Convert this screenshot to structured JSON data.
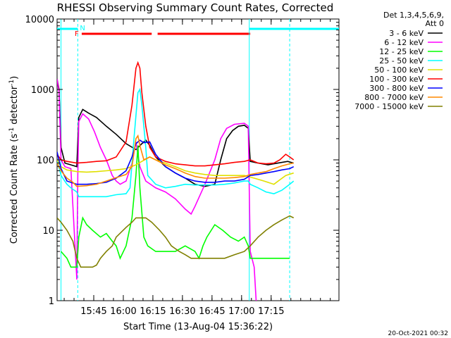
{
  "chart_data": {
    "type": "line",
    "title": "RHESSI Observing Summary Count Rates, Corrected",
    "xlabel": "Start Time (13-Aug-04 15:36:22)",
    "ylabel_main": "Corrected Count Rate (s",
    "ylabel_sup1": "-1",
    "ylabel_mid": " detector",
    "ylabel_sup2": "-1",
    "ylabel_end": ")",
    "y_log": true,
    "ylim": [
      1,
      10000
    ],
    "xlim_min": [
      -10,
      133
    ],
    "xtick_min": [
      8.6,
      23.6,
      38.6,
      53.6,
      68.6,
      83.6,
      98.6
    ],
    "xtick_labels": [
      "15:45",
      "16:00",
      "16:15",
      "16:30",
      "16:45",
      "17:00",
      "17:15"
    ],
    "ytick_values": [
      1,
      10,
      100,
      1000,
      10000
    ],
    "ytick_labels": [
      "1",
      "10",
      "100",
      "1000",
      "10000"
    ],
    "legend_header": [
      "Det 1,3,4,5,6,9,",
      "Att 0"
    ],
    "legend_position": "right",
    "footer_date": "20-Oct-2021 00:32",
    "flags": {
      "night_label": "N",
      "flare_label": "F",
      "night_color": "#00ffff",
      "flare_color": "#ff0000",
      "night_intervals_min": [
        [
          -10,
          0.5
        ],
        [
          87.5,
          133
        ]
      ],
      "flare_intervals_min": [
        [
          2.5,
          38
        ],
        [
          41,
          88
        ]
      ],
      "day_boundaries_min": [
        -8,
        0.5,
        87.5,
        108
      ]
    },
    "series": [
      {
        "name": "3 - 6 keV",
        "color": "#000000",
        "points": [
          [
            -10,
            1400
          ],
          [
            -9,
            1000
          ],
          [
            -8,
            150
          ],
          [
            -6,
            90
          ],
          [
            -3,
            85
          ],
          [
            0,
            80
          ],
          [
            1,
            400
          ],
          [
            3,
            520
          ],
          [
            6,
            460
          ],
          [
            10,
            400
          ],
          [
            15,
            300
          ],
          [
            20,
            230
          ],
          [
            25,
            170
          ],
          [
            30,
            140
          ],
          [
            33,
            170
          ],
          [
            35,
            190
          ],
          [
            37,
            160
          ],
          [
            40,
            110
          ],
          [
            45,
            80
          ],
          [
            50,
            65
          ],
          [
            55,
            55
          ],
          [
            60,
            45
          ],
          [
            65,
            42
          ],
          [
            70,
            45
          ],
          [
            73,
            100
          ],
          [
            76,
            200
          ],
          [
            79,
            260
          ],
          [
            82,
            300
          ],
          [
            85,
            310
          ],
          [
            87,
            280
          ],
          [
            88,
            95
          ],
          [
            92,
            90
          ],
          [
            97,
            85
          ],
          [
            102,
            90
          ],
          [
            107,
            95
          ],
          [
            110,
            90
          ]
        ]
      },
      {
        "name": "6 - 12 keV",
        "color": "#ff00ff",
        "points": [
          [
            -10,
            1400
          ],
          [
            -9,
            900
          ],
          [
            -8,
            100
          ],
          [
            -6,
            80
          ],
          [
            -3,
            75
          ],
          [
            0,
            2
          ],
          [
            0.5,
            60
          ],
          [
            1,
            350
          ],
          [
            3,
            450
          ],
          [
            6,
            380
          ],
          [
            9,
            250
          ],
          [
            12,
            150
          ],
          [
            15,
            100
          ],
          [
            18,
            60
          ],
          [
            20,
            50
          ],
          [
            22,
            45
          ],
          [
            25,
            50
          ],
          [
            28,
            90
          ],
          [
            30,
            180
          ],
          [
            32,
            80
          ],
          [
            35,
            50
          ],
          [
            40,
            40
          ],
          [
            45,
            35
          ],
          [
            50,
            28
          ],
          [
            55,
            20
          ],
          [
            58,
            17
          ],
          [
            60,
            22
          ],
          [
            65,
            45
          ],
          [
            70,
            100
          ],
          [
            73,
            200
          ],
          [
            76,
            280
          ],
          [
            80,
            320
          ],
          [
            85,
            330
          ],
          [
            87,
            300
          ],
          [
            88,
            5
          ],
          [
            90,
            3
          ],
          [
            91,
            1
          ]
        ]
      },
      {
        "name": "12 - 25 keV",
        "color": "#00ff00",
        "points": [
          [
            -8,
            5
          ],
          [
            -5,
            4
          ],
          [
            -3,
            3
          ],
          [
            0,
            3
          ],
          [
            1,
            8
          ],
          [
            3,
            15
          ],
          [
            5,
            12
          ],
          [
            8,
            10
          ],
          [
            12,
            8
          ],
          [
            15,
            9
          ],
          [
            18,
            7
          ],
          [
            20,
            6
          ],
          [
            22,
            4
          ],
          [
            25,
            6
          ],
          [
            28,
            15
          ],
          [
            30,
            60
          ],
          [
            31,
            160
          ],
          [
            32,
            40
          ],
          [
            34,
            8
          ],
          [
            36,
            6
          ],
          [
            40,
            5
          ],
          [
            45,
            5
          ],
          [
            50,
            5
          ],
          [
            55,
            6
          ],
          [
            60,
            5
          ],
          [
            62,
            4
          ],
          [
            64,
            6
          ],
          [
            66,
            8
          ],
          [
            70,
            12
          ],
          [
            74,
            10
          ],
          [
            78,
            8
          ],
          [
            82,
            7
          ],
          [
            85,
            8
          ],
          [
            87,
            6
          ],
          [
            88,
            4
          ],
          [
            92,
            4
          ],
          [
            100,
            4
          ],
          [
            108,
            4
          ]
        ]
      },
      {
        "name": "25 - 50 keV",
        "color": "#00ffff",
        "points": [
          [
            -10,
            100
          ],
          [
            -8,
            60
          ],
          [
            -5,
            45
          ],
          [
            -3,
            40
          ],
          [
            0,
            35
          ],
          [
            1,
            30
          ],
          [
            5,
            30
          ],
          [
            10,
            30
          ],
          [
            15,
            30
          ],
          [
            20,
            32
          ],
          [
            25,
            33
          ],
          [
            27,
            40
          ],
          [
            29,
            200
          ],
          [
            31,
            900
          ],
          [
            32,
            1000
          ],
          [
            33,
            600
          ],
          [
            35,
            150
          ],
          [
            36,
            60
          ],
          [
            40,
            45
          ],
          [
            45,
            40
          ],
          [
            50,
            42
          ],
          [
            55,
            45
          ],
          [
            60,
            44
          ],
          [
            65,
            44
          ],
          [
            70,
            44
          ],
          [
            75,
            45
          ],
          [
            80,
            47
          ],
          [
            85,
            50
          ],
          [
            87,
            50
          ],
          [
            88,
            45
          ],
          [
            92,
            40
          ],
          [
            96,
            35
          ],
          [
            100,
            33
          ],
          [
            104,
            37
          ],
          [
            108,
            45
          ],
          [
            110,
            50
          ]
        ]
      },
      {
        "name": "50 - 100 keV",
        "color": "#e0e000",
        "points": [
          [
            -10,
            100
          ],
          [
            -8,
            80
          ],
          [
            -5,
            72
          ],
          [
            0,
            68
          ],
          [
            5,
            67
          ],
          [
            10,
            68
          ],
          [
            15,
            70
          ],
          [
            20,
            72
          ],
          [
            25,
            75
          ],
          [
            30,
            85
          ],
          [
            33,
            95
          ],
          [
            37,
            110
          ],
          [
            40,
            100
          ],
          [
            45,
            90
          ],
          [
            50,
            80
          ],
          [
            55,
            70
          ],
          [
            60,
            65
          ],
          [
            65,
            62
          ],
          [
            70,
            60
          ],
          [
            75,
            60
          ],
          [
            80,
            60
          ],
          [
            85,
            60
          ],
          [
            90,
            55
          ],
          [
            95,
            50
          ],
          [
            100,
            45
          ],
          [
            103,
            52
          ],
          [
            106,
            60
          ],
          [
            110,
            65
          ]
        ]
      },
      {
        "name": "100 - 300 keV",
        "color": "#ff0000",
        "points": [
          [
            -10,
            120
          ],
          [
            -8,
            100
          ],
          [
            -5,
            95
          ],
          [
            0,
            90
          ],
          [
            5,
            92
          ],
          [
            10,
            95
          ],
          [
            15,
            97
          ],
          [
            20,
            110
          ],
          [
            25,
            180
          ],
          [
            28,
            600
          ],
          [
            30,
            2000
          ],
          [
            31,
            2400
          ],
          [
            32,
            2000
          ],
          [
            33,
            900
          ],
          [
            35,
            300
          ],
          [
            37,
            150
          ],
          [
            40,
            110
          ],
          [
            45,
            95
          ],
          [
            50,
            88
          ],
          [
            55,
            85
          ],
          [
            60,
            82
          ],
          [
            65,
            82
          ],
          [
            70,
            85
          ],
          [
            75,
            88
          ],
          [
            80,
            92
          ],
          [
            85,
            95
          ],
          [
            88,
            100
          ],
          [
            92,
            90
          ],
          [
            96,
            88
          ],
          [
            100,
            90
          ],
          [
            103,
            100
          ],
          [
            106,
            120
          ],
          [
            108,
            110
          ],
          [
            110,
            100
          ]
        ]
      },
      {
        "name": "300 - 800 keV",
        "color": "#0000ff",
        "points": [
          [
            -10,
            130
          ],
          [
            -8,
            75
          ],
          [
            -5,
            50
          ],
          [
            0,
            45
          ],
          [
            5,
            45
          ],
          [
            10,
            46
          ],
          [
            15,
            48
          ],
          [
            20,
            55
          ],
          [
            25,
            70
          ],
          [
            28,
            110
          ],
          [
            30,
            170
          ],
          [
            32,
            190
          ],
          [
            34,
            175
          ],
          [
            37,
            180
          ],
          [
            40,
            120
          ],
          [
            45,
            80
          ],
          [
            50,
            65
          ],
          [
            55,
            55
          ],
          [
            60,
            50
          ],
          [
            65,
            48
          ],
          [
            70,
            48
          ],
          [
            75,
            50
          ],
          [
            80,
            50
          ],
          [
            85,
            53
          ],
          [
            88,
            60
          ],
          [
            92,
            62
          ],
          [
            96,
            65
          ],
          [
            100,
            68
          ],
          [
            104,
            72
          ],
          [
            108,
            75
          ],
          [
            110,
            80
          ]
        ]
      },
      {
        "name": "800 - 7000 keV",
        "color": "#ff8800",
        "points": [
          [
            -10,
            90
          ],
          [
            -8,
            70
          ],
          [
            -5,
            55
          ],
          [
            -2,
            48
          ],
          [
            0,
            42
          ],
          [
            5,
            43
          ],
          [
            10,
            45
          ],
          [
            15,
            50
          ],
          [
            20,
            56
          ],
          [
            25,
            62
          ],
          [
            28,
            80
          ],
          [
            30,
            200
          ],
          [
            31,
            220
          ],
          [
            32,
            160
          ],
          [
            34,
            100
          ],
          [
            37,
            110
          ],
          [
            40,
            100
          ],
          [
            45,
            85
          ],
          [
            50,
            75
          ],
          [
            55,
            65
          ],
          [
            60,
            58
          ],
          [
            65,
            55
          ],
          [
            70,
            55
          ],
          [
            75,
            55
          ],
          [
            80,
            56
          ],
          [
            85,
            58
          ],
          [
            88,
            62
          ],
          [
            92,
            65
          ],
          [
            96,
            68
          ],
          [
            100,
            75
          ],
          [
            104,
            82
          ],
          [
            108,
            88
          ],
          [
            110,
            90
          ]
        ]
      },
      {
        "name": "7000 - 15000 keV",
        "color": "#808000",
        "points": [
          [
            -10,
            15
          ],
          [
            -8,
            13
          ],
          [
            -5,
            10
          ],
          [
            -2,
            7
          ],
          [
            0,
            4
          ],
          [
            2,
            3
          ],
          [
            5,
            3
          ],
          [
            8,
            3
          ],
          [
            10,
            3.2
          ],
          [
            12,
            4
          ],
          [
            15,
            5
          ],
          [
            18,
            6
          ],
          [
            20,
            8
          ],
          [
            25,
            11
          ],
          [
            28,
            13
          ],
          [
            30,
            15
          ],
          [
            35,
            15
          ],
          [
            38,
            13
          ],
          [
            42,
            10
          ],
          [
            45,
            8
          ],
          [
            48,
            6
          ],
          [
            52,
            5
          ],
          [
            55,
            4.5
          ],
          [
            58,
            4
          ],
          [
            62,
            4
          ],
          [
            65,
            4
          ],
          [
            70,
            4
          ],
          [
            75,
            4
          ],
          [
            80,
            4.5
          ],
          [
            85,
            5
          ],
          [
            88,
            6
          ],
          [
            92,
            8
          ],
          [
            96,
            10
          ],
          [
            100,
            12
          ],
          [
            104,
            14
          ],
          [
            108,
            16
          ],
          [
            110,
            15
          ]
        ]
      }
    ]
  }
}
